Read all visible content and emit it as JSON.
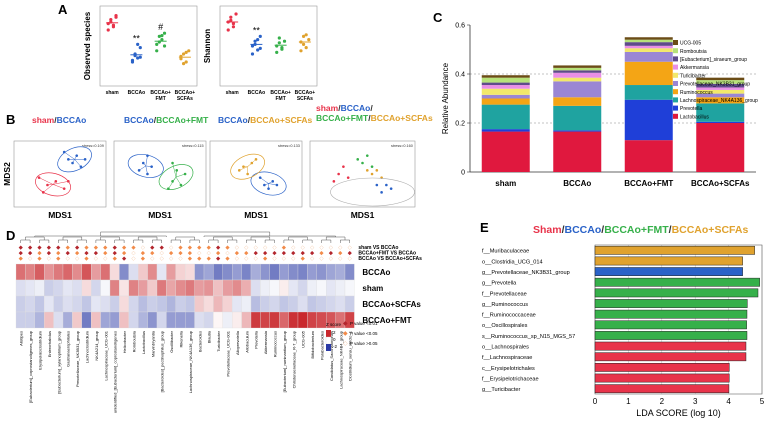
{
  "figure": {
    "panel_labels": {
      "A": "A",
      "B": "B",
      "C": "C",
      "D": "D",
      "E": "E"
    },
    "group_names": [
      "sham",
      "BCCAo",
      "BCCAo+FMT",
      "BCCAo+SCFAs"
    ],
    "group_colors": [
      "#e8334a",
      "#2a62c8",
      "#36b04a",
      "#e0a22e"
    ]
  },
  "chart_data": [
    {
      "id": "A1",
      "type": "scatter",
      "title": "",
      "ylabel": "Observed species",
      "categories": [
        "sham",
        "BCCAo",
        "BCCAo+FMT",
        "BCCAo+SCFAs"
      ],
      "category_display": [
        [
          "sham"
        ],
        [
          "BCCAo"
        ],
        [
          "BCCAo+",
          "FMT"
        ],
        [
          "BCCAo+",
          "SCFAs"
        ]
      ],
      "ylim": [
        0,
        1
      ],
      "points": [
        [
          0.78,
          0.83,
          0.74,
          0.86,
          0.7,
          0.8,
          0.76,
          0.88
        ],
        [
          0.32,
          0.4,
          0.35,
          0.48,
          0.3,
          0.38,
          0.52,
          0.36
        ],
        [
          0.52,
          0.62,
          0.58,
          0.66,
          0.44,
          0.55,
          0.63,
          0.5
        ],
        [
          0.34,
          0.4,
          0.3,
          0.44,
          0.37,
          0.28,
          0.42
        ]
      ],
      "means": [
        0.79,
        0.39,
        0.56,
        0.36
      ],
      "annotations": [
        {
          "group": 1,
          "text": "**"
        },
        {
          "group": 2,
          "text": "#"
        }
      ]
    },
    {
      "id": "A2",
      "type": "scatter",
      "title": "",
      "ylabel": "Shannon",
      "categories": [
        "sham",
        "BCCAo",
        "BCCAo+FMT",
        "BCCAo+SCFAs"
      ],
      "category_display": [
        [
          "sham"
        ],
        [
          "BCCAo"
        ],
        [
          "BCCAo+",
          "FMT"
        ],
        [
          "BCCAo+",
          "SCFAs"
        ]
      ],
      "ylim": [
        0,
        1
      ],
      "points": [
        [
          0.8,
          0.86,
          0.74,
          0.9,
          0.7,
          0.82,
          0.78
        ],
        [
          0.5,
          0.56,
          0.45,
          0.62,
          0.4,
          0.52,
          0.58,
          0.47
        ],
        [
          0.5,
          0.6,
          0.46,
          0.56,
          0.42,
          0.54,
          0.48
        ],
        [
          0.55,
          0.62,
          0.48,
          0.58,
          0.44,
          0.52,
          0.64
        ]
      ],
      "means": [
        0.8,
        0.52,
        0.51,
        0.55
      ],
      "annotations": [
        {
          "group": 1,
          "text": "**"
        }
      ]
    },
    {
      "id": "B",
      "type": "scatter",
      "xlabel": "MDS1",
      "ylabel": "MDS2",
      "panels": [
        {
          "title_parts": [
            {
              "text": "sham",
              "group": 0
            },
            {
              "text": "/",
              "group": -1
            },
            {
              "text": "BCCAo",
              "group": 1
            }
          ],
          "stress": "stress=0.109",
          "groups": [
            0,
            1
          ],
          "points": [
            [
              [
                -0.3,
                -0.3
              ],
              [
                -0.5,
                -0.1
              ],
              [
                -0.1,
                -0.2
              ],
              [
                0.1,
                -0.4
              ],
              [
                -0.4,
                -0.5
              ],
              [
                0.2,
                -0.2
              ]
            ],
            [
              [
                0.2,
                0.4
              ],
              [
                0.4,
                0.5
              ],
              [
                0.5,
                0.2
              ],
              [
                0.1,
                0.6
              ],
              [
                0.6,
                0.4
              ],
              [
                0.3,
                0.3
              ]
            ]
          ]
        },
        {
          "title_parts": [
            {
              "text": "BCCAo",
              "group": 1
            },
            {
              "text": "/",
              "group": -1
            },
            {
              "text": "BCCAo+FMT",
              "group": 2
            }
          ],
          "stress": "stress=0.115",
          "groups": [
            1,
            2
          ],
          "points": [
            [
              [
                -0.4,
                0.3
              ],
              [
                -0.3,
                0.5
              ],
              [
                -0.2,
                0.2
              ],
              [
                -0.5,
                0.1
              ],
              [
                -0.3,
                0.0
              ]
            ],
            [
              [
                0.3,
                -0.2
              ],
              [
                0.4,
                0.1
              ],
              [
                0.2,
                -0.4
              ],
              [
                0.5,
                -0.3
              ],
              [
                0.3,
                0.3
              ],
              [
                0.6,
                0.0
              ]
            ]
          ]
        },
        {
          "title_parts": [
            {
              "text": "BCCAo",
              "group": 1
            },
            {
              "text": "/",
              "group": -1
            },
            {
              "text": "BCCAo+SCFAs",
              "group": 3
            }
          ],
          "stress": "stress=0.133",
          "groups": [
            1,
            3
          ],
          "points": [
            [
              [
                0.2,
                -0.3
              ],
              [
                0.4,
                -0.2
              ],
              [
                0.3,
                -0.4
              ],
              [
                0.1,
                -0.1
              ],
              [
                0.5,
                -0.3
              ]
            ],
            [
              [
                -0.3,
                0.2
              ],
              [
                -0.1,
                0.3
              ],
              [
                -0.4,
                0.1
              ],
              [
                0.0,
                0.4
              ],
              [
                -0.2,
                0.0
              ]
            ]
          ]
        },
        {
          "title_parts": [
            {
              "text": "sham",
              "group": 0
            },
            {
              "text": "/",
              "group": -1
            },
            {
              "text": "BCCAo",
              "group": 1
            },
            {
              "text": "/",
              "group": -1
            },
            {
              "text": "BCCAo+FMT",
              "group": 2
            },
            {
              "text": "/",
              "group": -1
            },
            {
              "text": "BCCAo+SCFAs",
              "group": 3
            }
          ],
          "stress": "stress=0.160",
          "groups": [
            0,
            1,
            2,
            3
          ],
          "points": [
            [
              [
                -0.5,
                0.0
              ],
              [
                -0.6,
                -0.2
              ],
              [
                -0.4,
                0.2
              ],
              [
                -0.3,
                -0.1
              ]
            ],
            [
              [
                0.5,
                -0.3
              ],
              [
                0.6,
                -0.4
              ],
              [
                0.4,
                -0.5
              ],
              [
                0.3,
                -0.3
              ]
            ],
            [
              [
                0.0,
                0.3
              ],
              [
                0.1,
                0.5
              ],
              [
                -0.1,
                0.4
              ],
              [
                0.2,
                0.2
              ]
            ],
            [
              [
                0.2,
                0.0
              ],
              [
                0.3,
                0.1
              ],
              [
                0.4,
                -0.1
              ],
              [
                0.1,
                0.1
              ]
            ]
          ]
        }
      ]
    },
    {
      "id": "C",
      "type": "bar",
      "stacked": true,
      "ylabel": "Relative Abundance",
      "ylim": [
        0,
        0.6
      ],
      "yticks": [
        0,
        0.2,
        0.4,
        0.6
      ],
      "ytick_labels": [
        "0",
        "0.2",
        "0.4",
        "0.6"
      ],
      "grid_lines": [
        0.2,
        0.4
      ],
      "categories": [
        "sham",
        "BCCAo",
        "BCCAo+FMT",
        "BCCAo+SCFAs"
      ],
      "series": [
        {
          "name": "Lactobacillus",
          "color": "#e0183e",
          "values": [
            0.165,
            0.165,
            0.13,
            0.2
          ]
        },
        {
          "name": "Prevotella",
          "color": "#1f3fd8",
          "values": [
            0.01,
            0.005,
            0.165,
            0.005
          ]
        },
        {
          "name": "Lachnospiraceae_NK4A136_group",
          "color": "#1fa3a0",
          "values": [
            0.1,
            0.1,
            0.06,
            0.075
          ]
        },
        {
          "name": "Ruminococcus",
          "color": "#f4a515",
          "values": [
            0.025,
            0.035,
            0.095,
            0.025
          ]
        },
        {
          "name": "Prevotellaceae_NK3B31_group",
          "color": "#9a86d4",
          "values": [
            0.015,
            0.065,
            0.04,
            0.015
          ]
        },
        {
          "name": "Turicibacter",
          "color": "#f2e86a",
          "values": [
            0.025,
            0.015,
            0.015,
            0.015
          ]
        },
        {
          "name": "Akkermansia",
          "color": "#e98fe6",
          "values": [
            0.015,
            0.02,
            0.01,
            0.01
          ]
        },
        {
          "name": "[Eubacterium]_siraeum_group",
          "color": "#5f4b8b",
          "values": [
            0.01,
            0.01,
            0.015,
            0.015
          ]
        },
        {
          "name": "Romboutsia",
          "color": "#b7e27a",
          "values": [
            0.02,
            0.01,
            0.01,
            0.015
          ]
        },
        {
          "name": "UCG-005",
          "color": "#6b4c16",
          "values": [
            0.01,
            0.01,
            0.01,
            0.01
          ]
        }
      ]
    },
    {
      "id": "D",
      "type": "heatmap",
      "rows": [
        "BCCAo",
        "sham",
        "BCCAo+SCFAs",
        "BCCAo+FMT"
      ],
      "columns": [
        "Alistipes",
        "[Eubacterium]_coprostanoligenes_group",
        "Erysipelatoclostridium",
        "Enterorhabdus",
        "[Eubacterium]_xylanophilum_group",
        "Gastranaerophilales",
        "Prevotellaceae_NK3B31_group",
        "Lachnoclostridium",
        "NK4A214_group",
        "Lachnospiraceae_UCG-001",
        "unidentified_[Eubacterium]_coprostanoligenes",
        "Helicobacter",
        "Romboutsia",
        "Lactobacillus",
        "Marvinbryantia",
        "[Bacteroides]_pectinophilus_group",
        "Oscillibacter",
        "Rikenella",
        "Lachnospiraceae_NK4A136_group",
        "Bacteroides",
        "Blautia",
        "Turicibacter",
        "Prevotellaceae_UCG-001",
        "Alloprevotella",
        "Allobaculum",
        "Prevotella",
        "Akkermansia",
        "Ruminococcus",
        "[Eubacterium]_ruminantium_group",
        "Christensenellaceae_R-7_group",
        "UCG-005",
        "Bifidobacterium",
        "Parabacteroides",
        "Candidatus_Saccharimonas",
        "Lachnospiraceae_NK4B4_group",
        "Clostridium_sensu_stricto_1"
      ],
      "values": [
        [
          1.6,
          1.4,
          1.8,
          1.2,
          1.5,
          1.7,
          1.3,
          1.9,
          1.1,
          1.6,
          0.4,
          -1.4,
          -0.4,
          0.6,
          1.3,
          -0.3,
          1.1,
          0.5,
          0.4,
          -1.3,
          -1.1,
          -1.6,
          -1.4,
          -1.2,
          -1.5,
          -1.0,
          -1.3,
          -1.6,
          -1.2,
          -1.4,
          -1.5,
          -1.2,
          -1.3,
          -1.1,
          -1.0,
          -1.4
        ],
        [
          -0.4,
          -0.3,
          -0.2,
          -0.6,
          -0.5,
          -0.3,
          -0.4,
          0.4,
          -0.5,
          -0.1,
          1.4,
          0.3,
          1.4,
          1.1,
          0.6,
          1.5,
          1.0,
          1.3,
          1.5,
          1.1,
          1.2,
          0.7,
          1.1,
          1.3,
          0.9,
          -0.4,
          -0.2,
          -0.1,
          0.2,
          -0.3,
          -0.5,
          -0.2,
          -0.1,
          -0.3,
          -0.2,
          -0.1
        ],
        [
          -0.6,
          -0.5,
          -0.7,
          -0.3,
          -0.6,
          -0.4,
          -0.5,
          -0.7,
          -0.3,
          -0.4,
          -0.6,
          0.4,
          -0.5,
          -0.8,
          -0.6,
          -0.7,
          -0.9,
          -0.6,
          -0.7,
          0.6,
          0.4,
          0.8,
          0.5,
          -0.3,
          -0.2,
          -0.8,
          -0.6,
          -0.5,
          -0.7,
          -0.6,
          -0.4,
          -0.7,
          -0.6,
          -0.5,
          -0.4,
          -0.6
        ],
        [
          -0.6,
          -0.6,
          -0.9,
          0.7,
          -0.4,
          -1.0,
          0.6,
          -1.6,
          0.7,
          -1.1,
          -1.2,
          0.7,
          -0.5,
          -0.9,
          -1.3,
          -0.5,
          -1.2,
          -1.2,
          -1.2,
          -0.4,
          -0.5,
          0.1,
          -0.2,
          0.2,
          0.8,
          2.2,
          2.1,
          2.2,
          1.7,
          2.3,
          2.4,
          2.1,
          2.0,
          1.9,
          1.6,
          2.1
        ]
      ],
      "comparison_rows": [
        "sham  VS  BCCAo",
        "BCCAo+FMT  VS  BCCAo",
        "BCCAo  VS  BCCAo+SCFAs"
      ],
      "markers": [
        [
          2,
          2,
          2,
          2,
          2,
          1,
          2,
          1,
          1,
          1,
          2,
          1,
          1,
          0,
          2,
          2,
          0,
          1,
          1,
          1,
          1,
          2,
          1,
          0,
          0,
          0,
          0,
          0,
          1,
          0,
          0,
          0,
          0,
          0,
          0,
          0
        ],
        [
          2,
          2,
          1,
          2,
          1,
          2,
          1,
          2,
          2,
          1,
          2,
          1,
          0,
          1,
          1,
          0,
          1,
          1,
          1,
          0,
          0,
          1,
          0,
          1,
          1,
          2,
          2,
          2,
          2,
          2,
          2,
          2,
          1,
          2,
          1,
          2
        ],
        [
          1,
          0,
          1,
          0,
          1,
          0,
          0,
          1,
          0,
          0,
          1,
          2,
          0,
          1,
          0,
          0,
          0,
          0,
          1,
          1,
          1,
          2,
          1,
          0,
          0,
          0,
          1,
          0,
          0,
          0,
          1,
          0,
          0,
          0,
          0,
          0
        ]
      ],
      "legend": {
        "title": "Z score",
        "ticks": [
          "2",
          "0",
          "-2"
        ],
        "colors": [
          "#c9282d",
          "#ffffff",
          "#2b3aa5"
        ]
      },
      "pvalue_legend": [
        {
          "symbol": "◆",
          "color": "#b3262d",
          "text": "P value <0.01"
        },
        {
          "symbol": "◆",
          "color": "#f28b4a",
          "text": "P value <0.05"
        },
        {
          "symbol": "◇",
          "color": "#f4c7a5",
          "text": "P value >0.05"
        }
      ]
    },
    {
      "id": "E",
      "type": "bar",
      "orientation": "horizontal",
      "title_parts": [
        {
          "text": "Sham",
          "group": 0
        },
        {
          "text": "/",
          "group": -1
        },
        {
          "text": "BCCAo",
          "group": 1
        },
        {
          "text": "/",
          "group": -1
        },
        {
          "text": "BCCAo+FMT",
          "group": 2
        },
        {
          "text": "/",
          "group": -1
        },
        {
          "text": "BCCAo+SCFAs",
          "group": 3
        }
      ],
      "xlabel": "LDA SCORE (log 10)",
      "xlim": [
        0,
        5
      ],
      "xticks": [
        0,
        1,
        2,
        3,
        4,
        5
      ],
      "categories": [
        "f__Muribaculaceae",
        "o__Clostridia_UCG_014",
        "g__Prevotellaceae_NK3B31_group",
        "g__Prevotella",
        "f__Prevotellaceae",
        "g__Ruminococcus",
        "f__Ruminococcaceae",
        "o__Oscillospirales",
        "s__Ruminococcus_sp_N15_MGS_57",
        "o__Lachnospirales",
        "f__Lachnospiraceae",
        "c__Erysipelotrichales",
        "f__Erysipelotrichaceae",
        "g__Turicibacter"
      ],
      "values": [
        4.78,
        4.42,
        4.42,
        4.93,
        4.88,
        4.56,
        4.55,
        4.54,
        4.55,
        4.52,
        4.52,
        4.02,
        4.02,
        4.01
      ],
      "groups": [
        3,
        3,
        1,
        2,
        2,
        2,
        2,
        2,
        2,
        0,
        0,
        0,
        0,
        0
      ]
    }
  ]
}
